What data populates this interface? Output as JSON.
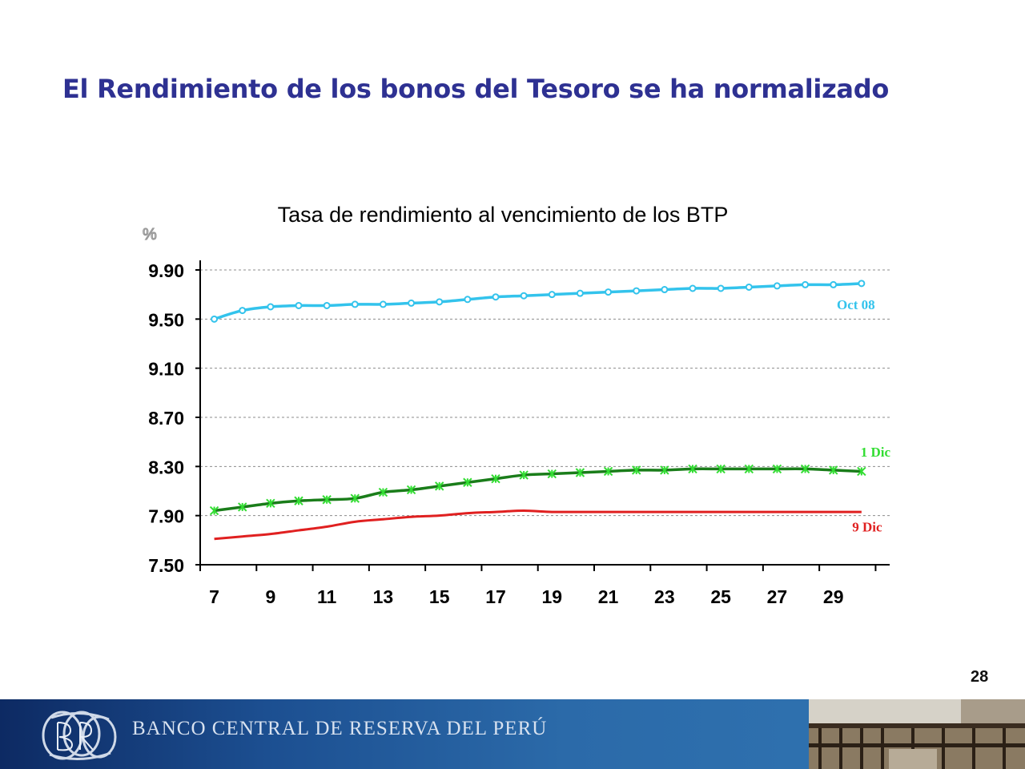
{
  "slide": {
    "title": "El Rendimiento de los bonos del Tesoro se ha normalizado",
    "page_number": "28",
    "footer_bank_name": "BANCO CENTRAL DE RESERVA DEL PERÚ",
    "footer_logo_icon": "bcrp-monogram-icon",
    "footer_photo_icon": "building-interior-photo-icon"
  },
  "colors": {
    "title": "#2e3192",
    "oct08": "#33c3ec",
    "dic1_line": "#1a7d1a",
    "dic1_marker": "#33dd33",
    "dic9": "#e02020"
  },
  "chart_data": {
    "type": "line",
    "title": "Tasa de rendimiento al vencimiento de los BTP",
    "ylabel": "%",
    "xlabel": "",
    "x": [
      7,
      8,
      9,
      10,
      11,
      12,
      13,
      14,
      15,
      16,
      17,
      18,
      19,
      20,
      21,
      22,
      23,
      24,
      25,
      26,
      27,
      28,
      29,
      30
    ],
    "x_tick_labels": [
      "7",
      "9",
      "11",
      "13",
      "15",
      "17",
      "19",
      "21",
      "23",
      "25",
      "27",
      "29"
    ],
    "y_tick_labels": [
      "9.90",
      "9.50",
      "9.10",
      "8.70",
      "8.30",
      "7.90",
      "7.50"
    ],
    "ylim": [
      7.5,
      9.9
    ],
    "xlim": [
      6.5,
      31
    ],
    "grid": "horizontal-dashed",
    "series": [
      {
        "name": "Oct 08",
        "marker": "circle",
        "values": [
          9.5,
          9.57,
          9.6,
          9.61,
          9.61,
          9.62,
          9.62,
          9.63,
          9.64,
          9.66,
          9.68,
          9.69,
          9.7,
          9.71,
          9.72,
          9.73,
          9.74,
          9.75,
          9.75,
          9.76,
          9.77,
          9.78,
          9.78,
          9.79
        ]
      },
      {
        "name": "1 Dic",
        "marker": "asterisk",
        "values": [
          7.94,
          7.97,
          8.0,
          8.02,
          8.03,
          8.04,
          8.09,
          8.11,
          8.14,
          8.17,
          8.2,
          8.23,
          8.24,
          8.25,
          8.26,
          8.27,
          8.27,
          8.28,
          8.28,
          8.28,
          8.28,
          8.28,
          8.27,
          8.26
        ]
      },
      {
        "name": "9 Dic",
        "marker": "none",
        "values": [
          7.71,
          7.73,
          7.75,
          7.78,
          7.81,
          7.85,
          7.87,
          7.89,
          7.9,
          7.92,
          7.93,
          7.94,
          7.93,
          7.93,
          7.93,
          7.93,
          7.93,
          7.93,
          7.93,
          7.93,
          7.93,
          7.93,
          7.93,
          7.93
        ]
      }
    ],
    "series_labels": [
      {
        "series": "Oct 08",
        "text": "Oct 08",
        "x": 29.8,
        "y": 9.58
      },
      {
        "series": "1 Dic",
        "text": "1 Dic",
        "x": 30.5,
        "y": 8.38
      },
      {
        "series": "9 Dic",
        "text": "9 Dic",
        "x": 30.2,
        "y": 7.77
      }
    ]
  }
}
